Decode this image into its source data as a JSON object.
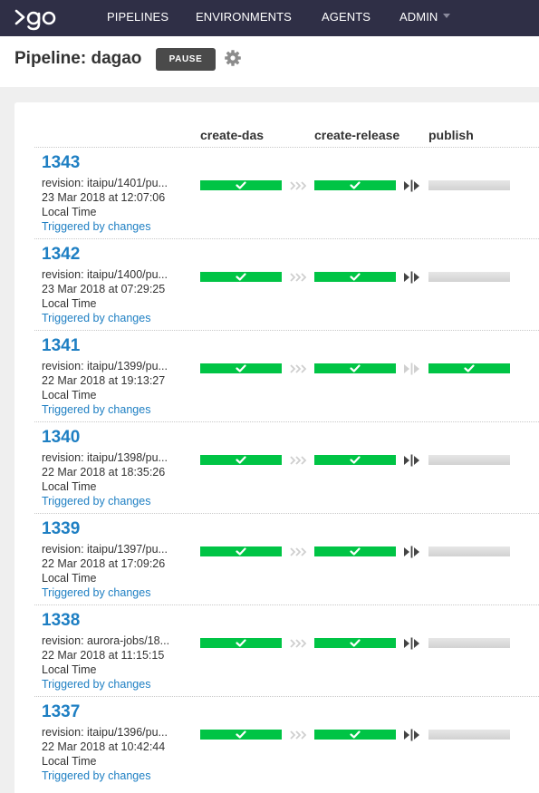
{
  "nav": {
    "items": [
      {
        "label": "PIPELINES"
      },
      {
        "label": "ENVIRONMENTS"
      },
      {
        "label": "AGENTS"
      },
      {
        "label": "ADMIN"
      }
    ]
  },
  "header": {
    "title": "Pipeline: dagao",
    "pause_label": "PAUSE"
  },
  "stages": [
    "create-das",
    "create-release",
    "publish"
  ],
  "rows": [
    {
      "counter": "1343",
      "revision": "revision: itaipu/1401/pu...",
      "date": "23 Mar 2018 at 12:07:06",
      "tz": "Local Time",
      "trigger": "Triggered by changes",
      "stage_status": [
        "passed",
        "passed",
        "idle"
      ],
      "connectors": [
        "auto",
        "manual"
      ]
    },
    {
      "counter": "1342",
      "revision": "revision: itaipu/1400/pu...",
      "date": "23 Mar 2018 at 07:29:25",
      "tz": "Local Time",
      "trigger": "Triggered by changes",
      "stage_status": [
        "passed",
        "passed",
        "idle"
      ],
      "connectors": [
        "auto",
        "manual"
      ]
    },
    {
      "counter": "1341",
      "revision": "revision: itaipu/1399/pu...",
      "date": "22 Mar 2018 at 19:13:27",
      "tz": "Local Time",
      "trigger": "Triggered by changes",
      "stage_status": [
        "passed",
        "passed",
        "passed"
      ],
      "connectors": [
        "auto",
        "manual-done"
      ]
    },
    {
      "counter": "1340",
      "revision": "revision: itaipu/1398/pu...",
      "date": "22 Mar 2018 at 18:35:26",
      "tz": "Local Time",
      "trigger": "Triggered by changes",
      "stage_status": [
        "passed",
        "passed",
        "idle"
      ],
      "connectors": [
        "auto",
        "manual"
      ]
    },
    {
      "counter": "1339",
      "revision": "revision: itaipu/1397/pu...",
      "date": "22 Mar 2018 at 17:09:26",
      "tz": "Local Time",
      "trigger": "Triggered by changes",
      "stage_status": [
        "passed",
        "passed",
        "idle"
      ],
      "connectors": [
        "auto",
        "manual"
      ]
    },
    {
      "counter": "1338",
      "revision": "revision: aurora-jobs/18...",
      "date": "22 Mar 2018 at 11:15:15",
      "tz": "Local Time",
      "trigger": "Triggered by changes",
      "stage_status": [
        "passed",
        "passed",
        "idle"
      ],
      "connectors": [
        "auto",
        "manual"
      ]
    },
    {
      "counter": "1337",
      "revision": "revision: itaipu/1396/pu...",
      "date": "22 Mar 2018 at 10:42:44",
      "tz": "Local Time",
      "trigger": "Triggered by changes",
      "stage_status": [
        "passed",
        "passed",
        "idle"
      ],
      "connectors": [
        "auto",
        "manual"
      ]
    }
  ],
  "icons": {
    "logo": "go-logo",
    "settings": "gear-icon",
    "passed": "check-icon",
    "auto_connector": "triple-chevron-icon",
    "manual_connector": "manual-gate-icon"
  },
  "colors": {
    "nav_bg": "#2f2f46",
    "passed": "#00c445",
    "link": "#1e7fc3",
    "idle": "#dcdcdc"
  }
}
